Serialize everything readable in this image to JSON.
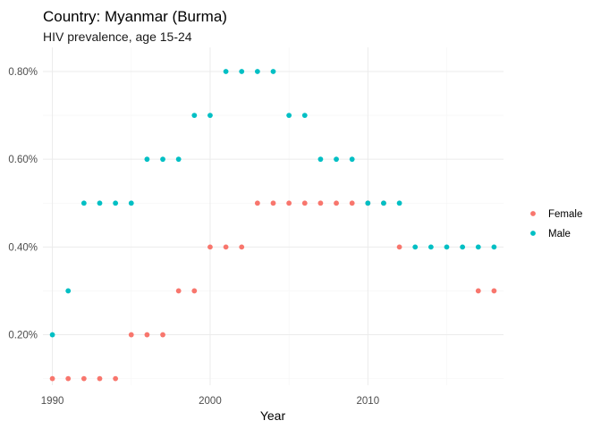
{
  "chart_data": {
    "type": "scatter",
    "title": "Country: Myanmar (Burma)",
    "subtitle": "HIV prevalence, age 15-24",
    "xlabel": "Year",
    "ylabel": "",
    "xlim": [
      1989.4,
      2018.6
    ],
    "ylim": [
      0.085,
      0.855
    ],
    "x_ticks": [
      1990,
      2000,
      2010
    ],
    "x_tick_labels": [
      "1990",
      "2000",
      "2010"
    ],
    "y_ticks": [
      0.2,
      0.4,
      0.6,
      0.8
    ],
    "y_tick_labels": [
      "0.20%",
      "0.40%",
      "0.60%",
      "0.80%"
    ],
    "grid": true,
    "legend_position": "right",
    "series": [
      {
        "name": "Female",
        "color": "#F8766D",
        "x": [
          1990,
          1991,
          1992,
          1993,
          1994,
          1995,
          1996,
          1997,
          1998,
          1999,
          2000,
          2001,
          2002,
          2003,
          2004,
          2005,
          2006,
          2007,
          2008,
          2009,
          2010,
          2011,
          2012,
          2017,
          2018
        ],
        "y": [
          0.1,
          0.1,
          0.1,
          0.1,
          0.1,
          0.2,
          0.2,
          0.2,
          0.3,
          0.3,
          0.4,
          0.4,
          0.4,
          0.5,
          0.5,
          0.5,
          0.5,
          0.5,
          0.5,
          0.5,
          0.5,
          0.5,
          0.4,
          0.3,
          0.3
        ]
      },
      {
        "name": "Male",
        "color": "#00BFC4",
        "x": [
          1990,
          1991,
          1992,
          1993,
          1994,
          1995,
          1996,
          1997,
          1998,
          1999,
          2000,
          2001,
          2002,
          2003,
          2004,
          2005,
          2006,
          2007,
          2008,
          2009,
          2010,
          2011,
          2012,
          2013,
          2014,
          2015,
          2016,
          2017,
          2018
        ],
        "y": [
          0.2,
          0.3,
          0.5,
          0.5,
          0.5,
          0.5,
          0.6,
          0.6,
          0.6,
          0.7,
          0.7,
          0.8,
          0.8,
          0.8,
          0.8,
          0.7,
          0.7,
          0.6,
          0.6,
          0.6,
          0.5,
          0.5,
          0.5,
          0.4,
          0.4,
          0.4,
          0.4,
          0.4,
          0.4
        ]
      }
    ]
  }
}
